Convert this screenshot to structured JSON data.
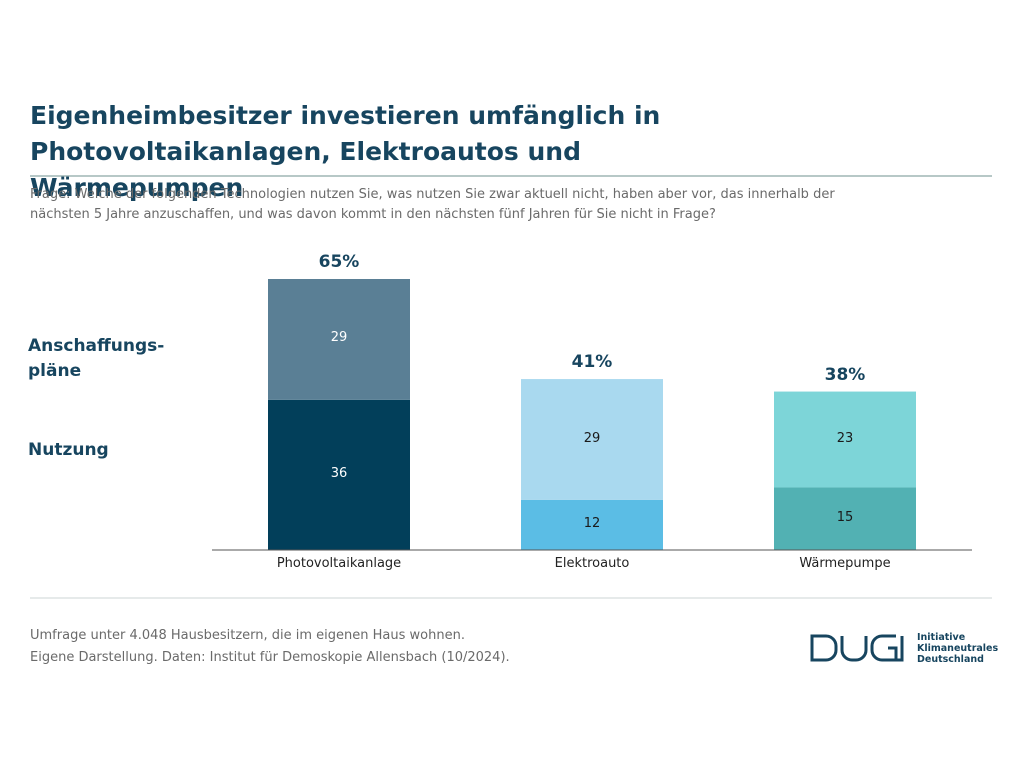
{
  "chart_data": {
    "type": "stacked_bar",
    "title": "Eigenheimbesitzer investieren umfänglich in Photovoltaikanlagen, Elektroautos und Wärmepumpen",
    "subtitle": "Frage: Welche der folgenden Technologien nutzen Sie, was nutzen Sie zwar aktuell nicht, haben aber vor, das innerhalb der nächsten 5 Jahre anzuschaffen, und was davon kommt in den nächsten fünf Jahren für Sie nicht in Frage?",
    "categories": [
      "Photovoltaikanlage",
      "Elektroauto",
      "Wärmepumpe"
    ],
    "series": [
      {
        "name": "Nutzung",
        "values": [
          36,
          12,
          15
        ],
        "colors": [
          "#023f5a",
          "#5bbde5",
          "#52b1b3"
        ],
        "label_colors": [
          "#ffffff",
          "#1a1a1a",
          "#1a1a1a"
        ]
      },
      {
        "name": "Anschaffungs-pläne",
        "values": [
          29,
          29,
          23
        ],
        "colors": [
          "#5a7f95",
          "#a9d9ef",
          "#7dd5d8"
        ],
        "label_colors": [
          "#ffffff",
          "#1a1a1a",
          "#1a1a1a"
        ]
      }
    ],
    "totals": {
      "values": [
        65,
        41,
        38
      ],
      "value_labels": [
        "65%",
        "41%",
        "38%"
      ]
    },
    "ylim": [
      0,
      65
    ],
    "footnotes": [
      "Umfrage unter 4.048 Hausbesitzern, die im eigenen Haus wohnen.",
      "Eigene Darstellung. Daten: Institut für Demoskopie Allensbach (10/2024)."
    ],
    "logo_text": "Initiative Klimaneutrales Deutschland"
  }
}
